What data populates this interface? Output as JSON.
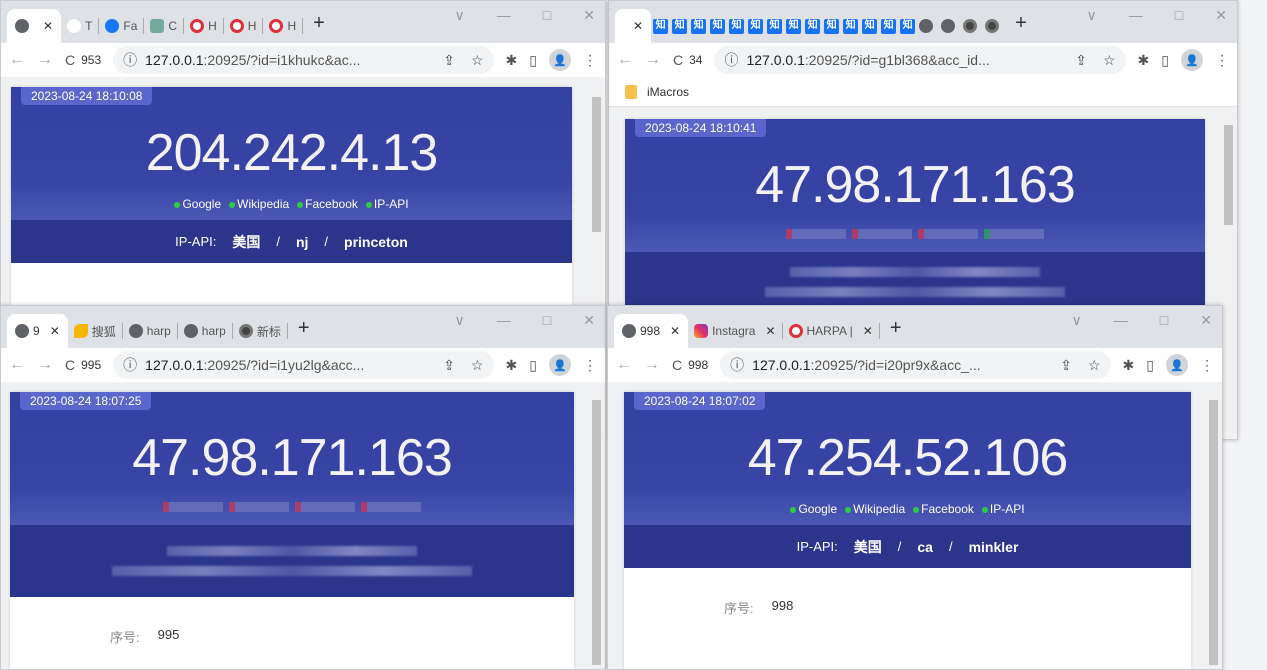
{
  "windows": [
    {
      "tabs": [
        {
          "title": "",
          "icon": "globe",
          "active": true
        },
        {
          "title": "T",
          "icon": "tiktok"
        },
        {
          "title": "Fa",
          "icon": "facebook"
        },
        {
          "title": "C",
          "icon": "chatgpt"
        },
        {
          "title": "H",
          "icon": "harpa"
        },
        {
          "title": "H",
          "icon": "harpa"
        },
        {
          "title": "H",
          "icon": "harpa"
        }
      ],
      "toolbar": {
        "counter": "953",
        "url_host": "127.0.0.1",
        "url_rest": ":20925/?id=i1khukc&ac..."
      },
      "page": {
        "timestamp": "2023-08-24 18:10:08",
        "ip": "204.242.4.13",
        "checks": [
          "Google",
          "Wikipedia",
          "Facebook",
          "IP-API"
        ],
        "check_color": "#2ecc40",
        "ipapi": {
          "label": "IP-API:",
          "country": "美国",
          "sep": "/",
          "region": "nj",
          "city": "princeton"
        }
      }
    },
    {
      "tabs": [
        {
          "title": "",
          "icon": "none",
          "active": true
        },
        {
          "icon": "zhihu",
          "title": "知"
        },
        {
          "icon": "zhihu",
          "title": "知"
        },
        {
          "icon": "zhihu",
          "title": "知"
        },
        {
          "icon": "zhihu",
          "title": "知"
        },
        {
          "icon": "zhihu",
          "title": "知"
        },
        {
          "icon": "zhihu",
          "title": "知"
        },
        {
          "icon": "zhihu",
          "title": "知"
        },
        {
          "icon": "zhihu",
          "title": "知"
        },
        {
          "icon": "zhihu",
          "title": "知"
        },
        {
          "icon": "zhihu",
          "title": "知"
        },
        {
          "icon": "zhihu",
          "title": "知"
        },
        {
          "icon": "zhihu",
          "title": "知"
        },
        {
          "icon": "zhihu",
          "title": "知"
        },
        {
          "icon": "zhihu",
          "title": "知"
        },
        {
          "icon": "globe",
          "title": ""
        },
        {
          "icon": "globe",
          "title": ""
        },
        {
          "icon": "chrome",
          "title": ""
        },
        {
          "icon": "chrome",
          "title": ""
        }
      ],
      "toolbar": {
        "counter": "34",
        "url_host": "127.0.0.1",
        "url_rest": ":20925/?id=g1bl368&acc_id..."
      },
      "bookmarks": [
        {
          "label": "iMacros"
        }
      ],
      "page": {
        "timestamp": "2023-08-24 18:10:41",
        "ip": "47.98.171.163",
        "check_color": "#c43a5a"
      }
    },
    {
      "tabs": [
        {
          "title": "9",
          "icon": "globe",
          "active": true
        },
        {
          "title": "搜狐",
          "icon": "sohu"
        },
        {
          "title": "harp",
          "icon": "globe"
        },
        {
          "title": "harp",
          "icon": "globe"
        },
        {
          "title": "新标",
          "icon": "chrome"
        }
      ],
      "toolbar": {
        "counter": "995",
        "url_host": "127.0.0.1",
        "url_rest": ":20925/?id=i1yu2lg&acc..."
      },
      "page": {
        "timestamp": "2023-08-24 18:07:25",
        "ip": "47.98.171.163",
        "check_color": "#c43a5a",
        "details": [
          {
            "key": "序号:",
            "value": "995"
          }
        ]
      }
    },
    {
      "tabs": [
        {
          "title": "998",
          "icon": "globe",
          "active": true
        },
        {
          "title": "Instagra",
          "icon": "instagram",
          "close": true
        },
        {
          "title": "HARPA |",
          "icon": "harpa",
          "close": true
        }
      ],
      "toolbar": {
        "counter": "998",
        "url_host": "127.0.0.1",
        "url_rest": ":20925/?id=i20pr9x&acc_..."
      },
      "page": {
        "timestamp": "2023-08-24 18:07:02",
        "ip": "47.254.52.106",
        "checks": [
          "Google",
          "Wikipedia",
          "Facebook",
          "IP-API"
        ],
        "check_color": "#2ecc40",
        "ipapi": {
          "label": "IP-API:",
          "country": "美国",
          "sep": "/",
          "region": "ca",
          "city": "minkler"
        },
        "details": [
          {
            "key": "序号:",
            "value": "998"
          }
        ]
      }
    }
  ],
  "icons": {
    "close": "✕",
    "new_tab": "+",
    "back": "←",
    "forward": "→",
    "reload": "C",
    "info": "ⓘ",
    "share": "⇪",
    "star": "☆",
    "extensions": "✱",
    "sidepanel": "▯",
    "menu": "⋮",
    "dropdown": "∨",
    "minimize": "—",
    "maximize": "□"
  }
}
